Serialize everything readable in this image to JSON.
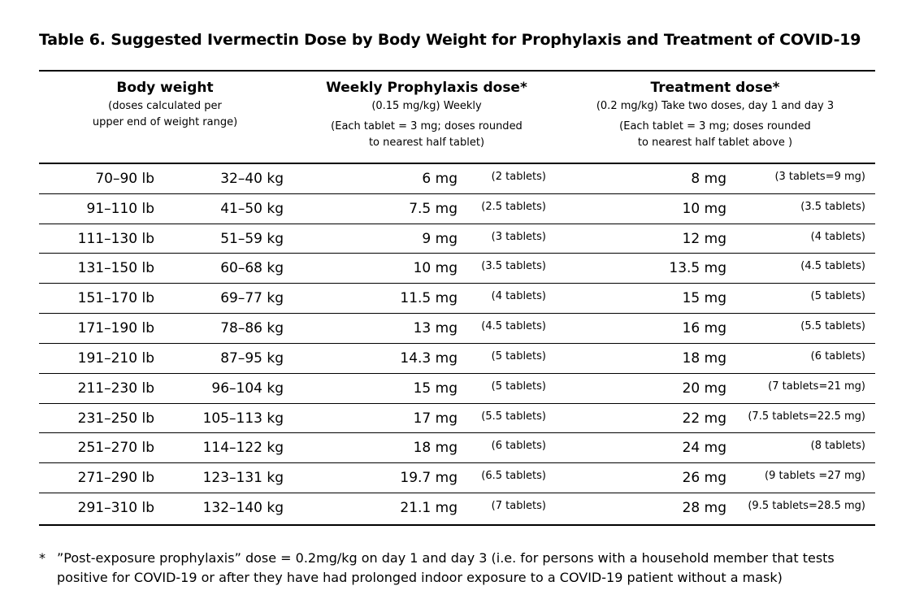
{
  "title": "Table 6.  Suggested Ivermectin Dose by Body Weight for Prophylaxis and Treatment of COVID-19",
  "headers": {
    "body_weight": {
      "main": "Body weight",
      "sub1": "(doses calculated per",
      "sub2": "upper end of weight range)"
    },
    "prophylaxis": {
      "main": "Weekly Prophylaxis dose*",
      "sub1": "(0.15 mg/kg) Weekly",
      "sub2": "(Each tablet = 3 mg; doses rounded",
      "sub3": "to nearest half tablet)"
    },
    "treatment": {
      "main": "Treatment dose*",
      "sub1": "(0.2 mg/kg) Take two doses, day 1 and day 3",
      "sub2": "(Each tablet = 3 mg; doses rounded",
      "sub3": "to nearest half tablet above )"
    }
  },
  "rows": [
    {
      "lb": "70–90 lb",
      "kg": "32–40 kg",
      "proph_dose": "6 mg",
      "proph_tablets": "(2 tablets)",
      "treat_dose": "8 mg",
      "treat_tablets": "(3 tablets=9 mg)"
    },
    {
      "lb": "91–110 lb",
      "kg": "41–50 kg",
      "proph_dose": "7.5 mg",
      "proph_tablets": "(2.5 tablets)",
      "treat_dose": "10 mg",
      "treat_tablets": "(3.5 tablets)"
    },
    {
      "lb": "111–130 lb",
      "kg": "51–59 kg",
      "proph_dose": "9 mg",
      "proph_tablets": "(3 tablets)",
      "treat_dose": "12 mg",
      "treat_tablets": "(4 tablets)"
    },
    {
      "lb": "131–150 lb",
      "kg": "60–68 kg",
      "proph_dose": "10 mg",
      "proph_tablets": "(3.5 tablets)",
      "treat_dose": "13.5 mg",
      "treat_tablets": "(4.5 tablets)"
    },
    {
      "lb": "151–170 lb",
      "kg": "69–77 kg",
      "proph_dose": "11.5 mg",
      "proph_tablets": "(4 tablets)",
      "treat_dose": "15 mg",
      "treat_tablets": "(5 tablets)"
    },
    {
      "lb": "171–190 lb",
      "kg": "78–86 kg",
      "proph_dose": "13 mg",
      "proph_tablets": "(4.5 tablets)",
      "treat_dose": "16 mg",
      "treat_tablets": "(5.5 tablets)"
    },
    {
      "lb": "191–210 lb",
      "kg": "87–95 kg",
      "proph_dose": "14.3 mg",
      "proph_tablets": "(5 tablets)",
      "treat_dose": "18 mg",
      "treat_tablets": "(6 tablets)"
    },
    {
      "lb": "211–230 lb",
      "kg": "96–104 kg",
      "proph_dose": "15 mg",
      "proph_tablets": "(5 tablets)",
      "treat_dose": "20 mg",
      "treat_tablets": "(7 tablets=21 mg)"
    },
    {
      "lb": "231–250 lb",
      "kg": "105–113 kg",
      "proph_dose": "17 mg",
      "proph_tablets": "(5.5 tablets)",
      "treat_dose": "22 mg",
      "treat_tablets": "(7.5 tablets=22.5 mg)"
    },
    {
      "lb": "251–270 lb",
      "kg": "114–122 kg",
      "proph_dose": "18 mg",
      "proph_tablets": "(6 tablets)",
      "treat_dose": "24 mg",
      "treat_tablets": "(8 tablets)"
    },
    {
      "lb": "271–290 lb",
      "kg": "123–131 kg",
      "proph_dose": "19.7 mg",
      "proph_tablets": "(6.5 tablets)",
      "treat_dose": "26 mg",
      "treat_tablets": "(9 tablets =27 mg)"
    },
    {
      "lb": "291–310 lb",
      "kg": "132–140 kg",
      "proph_dose": "21.1 mg",
      "proph_tablets": "(7 tablets)",
      "treat_dose": "28 mg",
      "treat_tablets": "(9.5 tablets=28.5 mg)"
    }
  ],
  "footnote": {
    "marker": "*",
    "text": "”Post-exposure prophylaxis” dose = 0.2mg/kg on day 1 and day 3 (i.e. for persons with a household member that tests positive for COVID-19 or after they have had prolonged indoor exposure to a COVID-19 patient without a mask)"
  }
}
